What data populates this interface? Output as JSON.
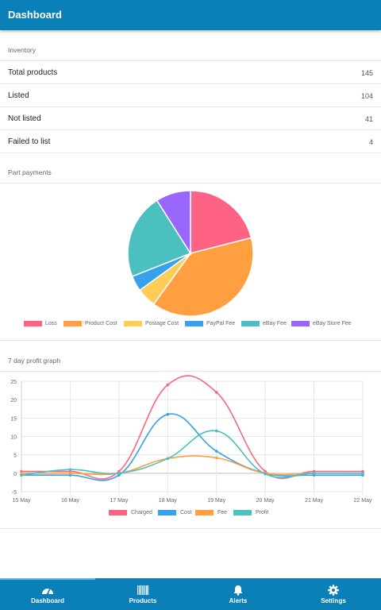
{
  "header": {
    "title": "Dashboard"
  },
  "inventory": {
    "label": "Inventory",
    "rows": [
      {
        "label": "Total products",
        "value": "145"
      },
      {
        "label": "Listed",
        "value": "104"
      },
      {
        "label": "Not listed",
        "value": "41"
      },
      {
        "label": "Failed to list",
        "value": "4"
      }
    ]
  },
  "part_payments": {
    "label": "Part payments"
  },
  "profit_graph": {
    "label": "7 day profit graph"
  },
  "chart_data": [
    {
      "type": "pie",
      "categories": [
        "Loss",
        "Product Cost",
        "Postage Cost",
        "PayPal Fee",
        "eBay Fee",
        "eBay Store Fee"
      ],
      "values": [
        21,
        39,
        5,
        4,
        22,
        9
      ],
      "colors": [
        "#ff6384",
        "#ff9f40",
        "#ffcd56",
        "#36a2eb",
        "#4bc0c0",
        "#9966ff"
      ],
      "legend": "bottom"
    },
    {
      "type": "line",
      "x": [
        "15 May",
        "16 May",
        "17 May",
        "18 May",
        "19 May",
        "20 May",
        "21 May",
        "22 May"
      ],
      "series": [
        {
          "name": "Charged",
          "values": [
            0.5,
            0.5,
            0.5,
            24,
            22,
            0.5,
            0.5,
            0.5
          ],
          "color": "#ff6384"
        },
        {
          "name": "Cost",
          "values": [
            -0.5,
            -0.5,
            -0.5,
            16,
            6,
            0,
            -0.5,
            -0.5
          ],
          "color": "#36a2eb"
        },
        {
          "name": "Fee",
          "values": [
            0,
            0,
            0,
            4,
            4.2,
            0,
            0,
            0
          ],
          "color": "#ff9f40"
        },
        {
          "name": "Profit",
          "values": [
            -0.5,
            1,
            0,
            4,
            11.5,
            -0.2,
            0,
            0
          ],
          "color": "#4bc0c0"
        }
      ],
      "ylim": [
        -5,
        25
      ],
      "yticks": [
        25,
        20,
        15,
        10,
        5,
        0,
        -5
      ],
      "grid": true,
      "legend": "bottom"
    }
  ],
  "bottom_nav": {
    "items": [
      {
        "label": "Dashboard",
        "icon": "gauge-icon"
      },
      {
        "label": "Products",
        "icon": "barcode-icon"
      },
      {
        "label": "Alerts",
        "icon": "bell-icon"
      },
      {
        "label": "Settings",
        "icon": "gear-icon"
      }
    ]
  }
}
